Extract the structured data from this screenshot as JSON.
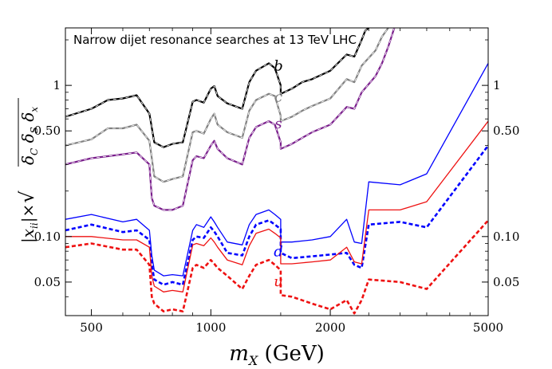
{
  "chart_data": {
    "type": "line",
    "title": "Narrow dijet resonance searches at 13 TeV LHC",
    "xlabel": {
      "var": "m",
      "sub": "X",
      "unit": " (GeV)"
    },
    "ylabel": {
      "pre": "|x",
      "sub": "ii",
      "mid": "|×",
      "under_root": [
        "δ",
        "C",
        " δ",
        "S",
        " δ",
        "x"
      ]
    },
    "xscale": "log",
    "yscale": "log",
    "xlim": [
      430,
      5000
    ],
    "ylim": [
      0.03,
      2.4
    ],
    "x_ticks": [
      500,
      1000,
      2000,
      5000
    ],
    "x_tick_labels": [
      "500",
      "1000",
      "2000",
      "5000"
    ],
    "y_ticks": [
      0.05,
      0.1,
      0.5,
      1
    ],
    "y_tick_labels": [
      "0.05",
      "0.10",
      "0.50",
      "1"
    ],
    "series": [
      {
        "name": "b",
        "color": "#000000",
        "dashed_overlay": true,
        "label_at": [
          1480,
          1.25
        ],
        "x": [
          430,
          500,
          550,
          600,
          650,
          700,
          720,
          760,
          800,
          850,
          900,
          920,
          960,
          1000,
          1020,
          1040,
          1100,
          1200,
          1250,
          1300,
          1400,
          1450,
          1500,
          1500,
          1600,
          1700,
          1800,
          2000,
          2200,
          2300,
          2400,
          2450,
          2500
        ],
        "y": [
          0.62,
          0.7,
          0.8,
          0.82,
          0.86,
          0.65,
          0.42,
          0.39,
          0.41,
          0.42,
          0.78,
          0.8,
          0.77,
          0.95,
          0.99,
          0.85,
          0.76,
          0.7,
          1.05,
          1.25,
          1.4,
          1.3,
          1.0,
          0.88,
          0.95,
          1.05,
          1.1,
          1.25,
          1.6,
          1.55,
          2.0,
          2.3,
          2.4
        ]
      },
      {
        "name": "c",
        "color": "#808080",
        "dashed_overlay": true,
        "label_at": [
          1480,
          0.78
        ],
        "x": [
          430,
          500,
          550,
          600,
          650,
          700,
          720,
          760,
          800,
          850,
          900,
          920,
          960,
          1000,
          1020,
          1040,
          1100,
          1200,
          1250,
          1300,
          1400,
          1450,
          1500,
          1500,
          1600,
          1700,
          1800,
          2000,
          2200,
          2300,
          2400,
          2600,
          2700,
          2800
        ],
        "y": [
          0.4,
          0.44,
          0.52,
          0.52,
          0.55,
          0.43,
          0.25,
          0.23,
          0.24,
          0.25,
          0.49,
          0.5,
          0.48,
          0.6,
          0.65,
          0.55,
          0.49,
          0.45,
          0.68,
          0.8,
          0.88,
          0.85,
          0.63,
          0.58,
          0.62,
          0.68,
          0.73,
          0.82,
          1.1,
          1.05,
          1.35,
          1.7,
          2.1,
          2.4
        ]
      },
      {
        "name": "s",
        "color": "#7a1f8c",
        "dashed_overlay": true,
        "label_at": [
          1480,
          0.52
        ],
        "x": [
          430,
          500,
          550,
          600,
          650,
          700,
          710,
          720,
          760,
          800,
          850,
          900,
          920,
          960,
          1000,
          1020,
          1040,
          1100,
          1200,
          1250,
          1300,
          1400,
          1450,
          1500,
          1500,
          1600,
          1700,
          1800,
          2000,
          2200,
          2300,
          2400,
          2600,
          2700,
          2800,
          2900
        ],
        "y": [
          0.3,
          0.33,
          0.34,
          0.35,
          0.36,
          0.3,
          0.18,
          0.16,
          0.15,
          0.15,
          0.16,
          0.32,
          0.34,
          0.33,
          0.4,
          0.43,
          0.38,
          0.33,
          0.3,
          0.45,
          0.53,
          0.58,
          0.55,
          0.42,
          0.38,
          0.41,
          0.45,
          0.49,
          0.55,
          0.72,
          0.7,
          0.9,
          1.15,
          1.4,
          1.8,
          2.4
        ]
      },
      {
        "name": "d",
        "color": "#0000ff",
        "dash": "none",
        "x": [
          430,
          500,
          600,
          650,
          700,
          710,
          720,
          760,
          800,
          850,
          900,
          920,
          960,
          1000,
          1020,
          1040,
          1100,
          1200,
          1250,
          1300,
          1400,
          1450,
          1500,
          1500,
          1600,
          1800,
          2000,
          2200,
          2300,
          2400,
          2500,
          3000,
          3500,
          5000
        ],
        "y": [
          0.13,
          0.14,
          0.125,
          0.13,
          0.11,
          0.075,
          0.06,
          0.055,
          0.056,
          0.055,
          0.11,
          0.12,
          0.115,
          0.135,
          0.125,
          0.115,
          0.092,
          0.088,
          0.12,
          0.14,
          0.15,
          0.14,
          0.13,
          0.092,
          0.092,
          0.095,
          0.1,
          0.13,
          0.092,
          0.09,
          0.23,
          0.22,
          0.26,
          1.4
        ]
      },
      {
        "name": "d",
        "color": "#0000ff",
        "dash": "dotted",
        "label_at": [
          1480,
          0.074
        ],
        "x": [
          430,
          500,
          600,
          650,
          700,
          710,
          720,
          760,
          800,
          850,
          900,
          920,
          960,
          1000,
          1020,
          1040,
          1100,
          1200,
          1250,
          1300,
          1400,
          1450,
          1500,
          1500,
          1600,
          1800,
          2000,
          2200,
          2300,
          2400,
          2500,
          3000,
          3500,
          5000
        ],
        "y": [
          0.11,
          0.12,
          0.107,
          0.11,
          0.095,
          0.065,
          0.052,
          0.048,
          0.05,
          0.048,
          0.095,
          0.1,
          0.098,
          0.115,
          0.108,
          0.1,
          0.078,
          0.075,
          0.1,
          0.12,
          0.128,
          0.12,
          0.112,
          0.078,
          0.072,
          0.074,
          0.076,
          0.078,
          0.065,
          0.062,
          0.12,
          0.125,
          0.115,
          0.4
        ]
      },
      {
        "name": "",
        "color": "#ee1111",
        "dash": "none",
        "x": [
          430,
          500,
          600,
          650,
          700,
          710,
          720,
          760,
          800,
          850,
          900,
          920,
          960,
          1000,
          1020,
          1040,
          1100,
          1200,
          1250,
          1300,
          1400,
          1450,
          1500,
          1500,
          1600,
          1800,
          2000,
          2200,
          2300,
          2400,
          2500,
          3000,
          3500,
          5000
        ],
        "y": [
          0.1,
          0.1,
          0.095,
          0.095,
          0.085,
          0.055,
          0.047,
          0.043,
          0.044,
          0.043,
          0.088,
          0.09,
          0.087,
          0.098,
          0.092,
          0.085,
          0.07,
          0.065,
          0.087,
          0.105,
          0.112,
          0.105,
          0.098,
          0.066,
          0.066,
          0.068,
          0.07,
          0.085,
          0.068,
          0.066,
          0.15,
          0.15,
          0.17,
          0.58
        ]
      },
      {
        "name": "u",
        "color": "#ee1111",
        "dash": "dotted",
        "label_at": [
          1480,
          0.047
        ],
        "x": [
          430,
          500,
          600,
          650,
          700,
          710,
          720,
          760,
          800,
          850,
          900,
          920,
          960,
          1000,
          1020,
          1040,
          1100,
          1200,
          1250,
          1300,
          1400,
          1450,
          1500,
          1500,
          1600,
          1800,
          2000,
          2200,
          2300,
          2400,
          2500,
          3000,
          3500,
          5000
        ],
        "y": [
          0.085,
          0.09,
          0.082,
          0.082,
          0.065,
          0.04,
          0.036,
          0.032,
          0.033,
          0.032,
          0.062,
          0.065,
          0.062,
          0.07,
          0.066,
          0.062,
          0.055,
          0.045,
          0.055,
          0.065,
          0.07,
          0.065,
          0.06,
          0.041,
          0.04,
          0.036,
          0.033,
          0.038,
          0.031,
          0.038,
          0.052,
          0.05,
          0.045,
          0.128
        ]
      }
    ],
    "grid": false,
    "legend": "inline labels"
  }
}
